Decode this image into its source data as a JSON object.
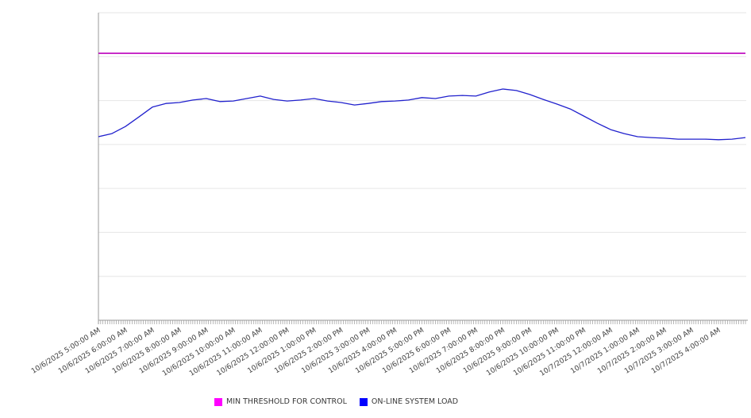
{
  "page": {
    "background": "#ffffff"
  },
  "legend": {
    "position": "bottom-center",
    "items": [
      {
        "label": "MIN THRESHOLD FOR CONTROL",
        "swatch_color": "#ff00ff"
      },
      {
        "label": "ON-LINE SYSTEM LOAD",
        "swatch_color": "#0000ff"
      }
    ]
  },
  "chart_data": {
    "type": "line",
    "title": "",
    "xlabel": "",
    "ylabel": "",
    "x_categories": [
      "10/6/2025 5:00:00 AM",
      "10/6/2025 6:00:00 AM",
      "10/6/2025 7:00:00 AM",
      "10/6/2025 8:00:00 AM",
      "10/6/2025 9:00:00 AM",
      "10/6/2025 10:00:00 AM",
      "10/6/2025 11:00:00 AM",
      "10/6/2025 12:00:00 PM",
      "10/6/2025 1:00:00 PM",
      "10/6/2025 2:00:00 PM",
      "10/6/2025 3:00:00 PM",
      "10/6/2025 4:00:00 PM",
      "10/6/2025 5:00:00 PM",
      "10/6/2025 6:00:00 PM",
      "10/6/2025 7:00:00 PM",
      "10/6/2025 8:00:00 PM",
      "10/6/2025 9:00:00 PM",
      "10/6/2025 10:00:00 PM",
      "10/6/2025 11:00:00 PM",
      "10/7/2025 12:00:00 AM",
      "10/7/2025 1:00:00 AM",
      "10/7/2025 2:00:00 AM",
      "10/7/2025 3:00:00 AM",
      "10/7/2025 4:00:00 AM"
    ],
    "x_minor_ticks_per_hour": 12,
    "x_label_rotation_deg": -32,
    "y_axis_labels_visible": false,
    "y_scale_note": "no y-axis tick labels are shown; series values are expressed as percent of plot height (0 = x-axis line, 100 = top gridline)",
    "ylim": [
      0,
      100
    ],
    "horizontal_gridlines": 8,
    "grid": "horizontal",
    "grid_color": "#e6e6e6",
    "axis_color": "#9a9a9a",
    "label_color": "#404040",
    "legend_position": "bottom-center",
    "series": [
      {
        "name": "MIN THRESHOLD FOR CONTROL",
        "type": "threshold-hline",
        "line_color": "#bb00bb",
        "legend_color": "#ff00ff",
        "value_pct": 86.8
      },
      {
        "name": "ON-LINE SYSTEM LOAD",
        "type": "line",
        "line_color": "#2121cd",
        "legend_color": "#0000ff",
        "start": "10/6/2025 5:00:00 AM",
        "sample_interval_hours": 0.5,
        "values_pct": [
          59.7,
          60.7,
          63.0,
          66.1,
          69.3,
          70.5,
          70.8,
          71.6,
          72.1,
          71.1,
          71.3,
          72.1,
          72.9,
          71.8,
          71.3,
          71.6,
          72.1,
          71.3,
          70.8,
          70.0,
          70.5,
          71.1,
          71.3,
          71.6,
          72.4,
          72.1,
          72.9,
          73.1,
          72.9,
          74.2,
          75.2,
          74.7,
          73.4,
          71.8,
          70.3,
          68.7,
          66.4,
          64.1,
          62.0,
          60.7,
          59.7,
          59.4,
          59.2,
          58.9,
          58.9,
          58.9,
          58.7,
          58.9,
          59.4
        ]
      }
    ]
  }
}
